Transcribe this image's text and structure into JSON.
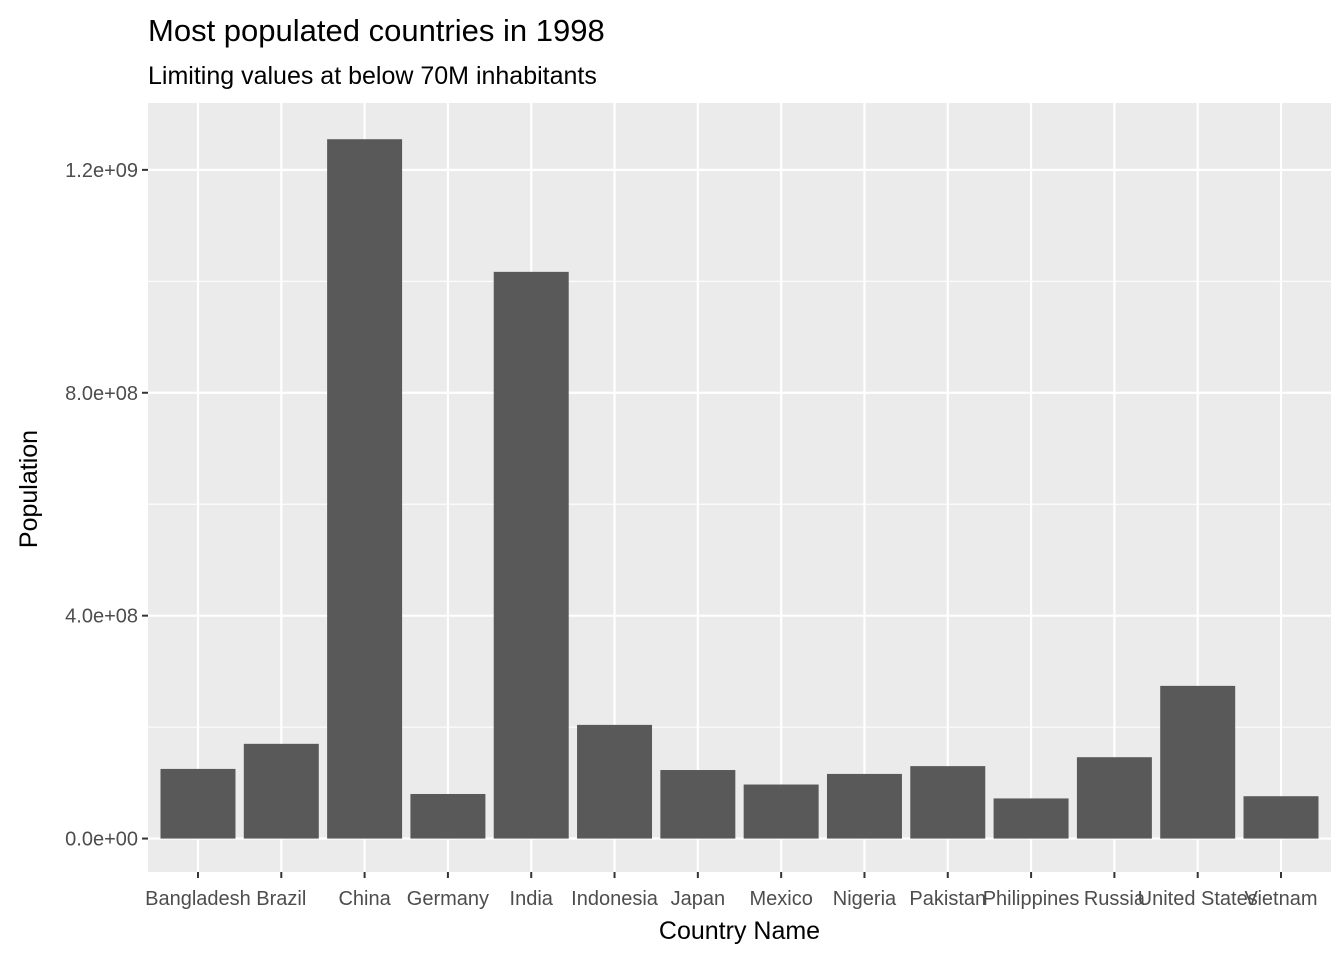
{
  "colors": {
    "panel_background": "#ebebeb",
    "grid_major": "#ffffff",
    "bar_fill": "#595959",
    "tick_text": "#4d4d4d",
    "tick_mark": "#333333"
  },
  "chart_data": {
    "type": "bar",
    "title": "Most populated countries in 1998",
    "subtitle": "Limiting values at below 70M inhabitants",
    "xlabel": "Country Name",
    "ylabel": "Population",
    "categories": [
      "Bangladesh",
      "Brazil",
      "China",
      "Germany",
      "India",
      "Indonesia",
      "Japan",
      "Mexico",
      "Nigeria",
      "Pakistan",
      "Philippines",
      "Russia",
      "United States",
      "Vietnam"
    ],
    "values": [
      125000000,
      170000000,
      1255000000,
      80000000,
      1017000000,
      204000000,
      123000000,
      97000000,
      116000000,
      130000000,
      72000000,
      146000000,
      274000000,
      76000000
    ],
    "ylim": [
      -60000000,
      1320000000
    ],
    "yticks": [
      0,
      400000000,
      800000000,
      1200000000
    ],
    "ytick_labels": [
      "0.0e+00",
      "4.0e+08",
      "8.0e+08",
      "1.2e+09"
    ],
    "grid": true,
    "legend": "none"
  }
}
